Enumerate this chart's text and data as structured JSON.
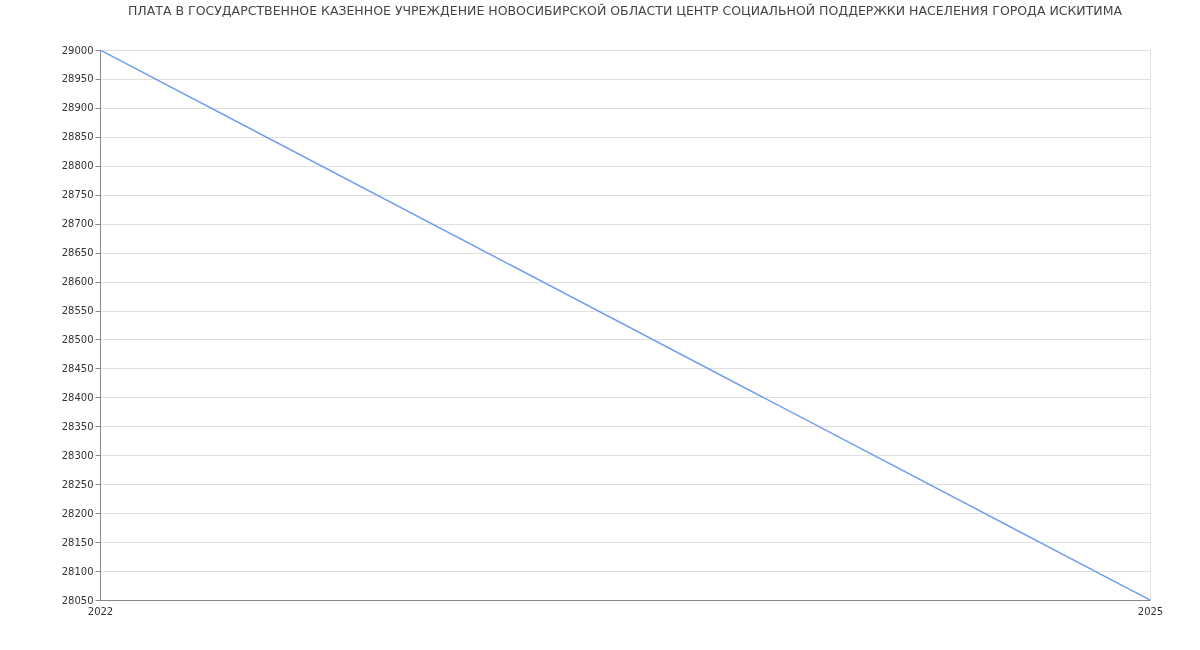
{
  "chart_data": {
    "type": "line",
    "title": "ПЛАТА В ГОСУДАРСТВЕННОЕ КАЗЕННОЕ УЧРЕЖДЕНИЕ НОВОСИБИРСКОЙ ОБЛАСТИ ЦЕНТР СОЦИАЛЬНОЙ ПОДДЕРЖКИ НАСЕЛЕНИЯ ГОРОДА ИСКИТИМА",
    "x": [
      "2022",
      "2025"
    ],
    "series": [
      {
        "color": "#6f9cf0",
        "values": [
          29000,
          28050
        ]
      }
    ],
    "xlim": [
      "2022",
      "2025"
    ],
    "xticks": [
      "2022",
      "2025"
    ],
    "ylim": [
      28050,
      29000
    ],
    "yticks": [
      28050,
      28100,
      28150,
      28200,
      28250,
      28300,
      28350,
      28400,
      28450,
      28500,
      28550,
      28600,
      28650,
      28700,
      28750,
      28800,
      28850,
      28900,
      28950,
      29000
    ],
    "grid": true
  }
}
